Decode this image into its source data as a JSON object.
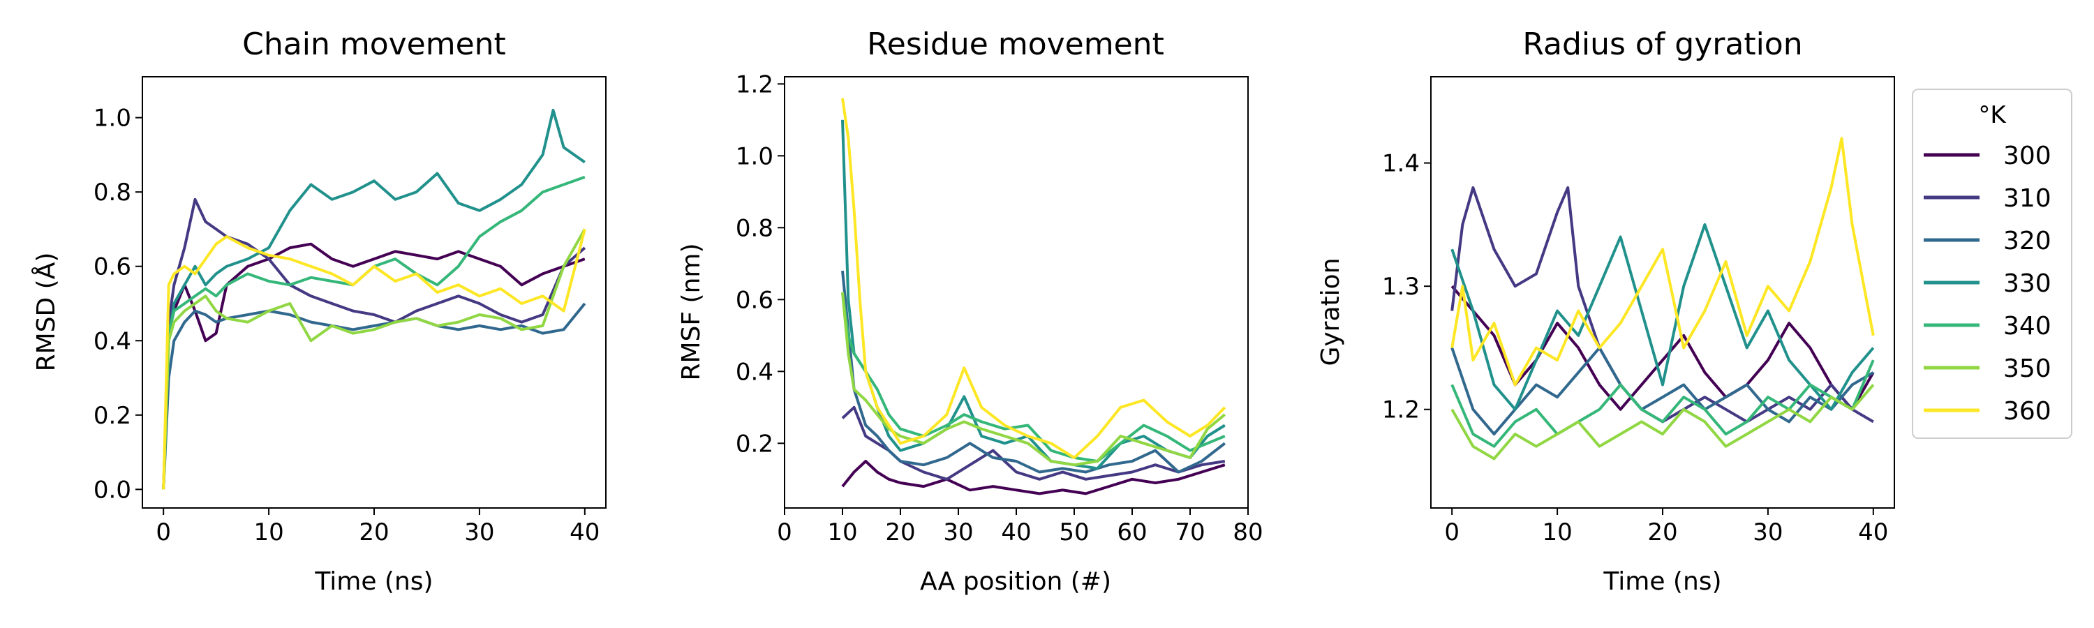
{
  "figure": {
    "legend": {
      "title": "°K",
      "placement": "outside-right"
    }
  },
  "colors": {
    "300": "#440154",
    "310": "#443983",
    "320": "#31688e",
    "330": "#21918c",
    "340": "#35b779",
    "350": "#90d743",
    "360": "#fde725"
  },
  "chart_data": [
    {
      "type": "line",
      "title": "Chain movement",
      "xlabel": "Time (ns)",
      "ylabel": "RMSD (Å)",
      "xlim": [
        -2,
        42
      ],
      "ylim": [
        -0.05,
        1.11
      ],
      "xticks": [
        "0",
        "10",
        "20",
        "30",
        "40"
      ],
      "yticks": [
        "0.0",
        "0.2",
        "0.4",
        "0.6",
        "0.8",
        "1.0"
      ],
      "series": [
        {
          "name": "300",
          "x": [
            0,
            0.5,
            1,
            2,
            3,
            4,
            5,
            6,
            8,
            10,
            12,
            14,
            16,
            18,
            20,
            22,
            24,
            26,
            28,
            30,
            32,
            34,
            36,
            38,
            40
          ],
          "values": [
            0,
            0.42,
            0.48,
            0.55,
            0.48,
            0.4,
            0.42,
            0.55,
            0.6,
            0.62,
            0.65,
            0.66,
            0.62,
            0.6,
            0.62,
            0.64,
            0.63,
            0.62,
            0.64,
            0.62,
            0.6,
            0.55,
            0.58,
            0.6,
            0.62
          ]
        },
        {
          "name": "310",
          "x": [
            0,
            0.5,
            1,
            2,
            3,
            4,
            5,
            6,
            8,
            10,
            12,
            14,
            16,
            18,
            20,
            22,
            24,
            26,
            28,
            30,
            32,
            34,
            36,
            38,
            40
          ],
          "values": [
            0,
            0.45,
            0.55,
            0.65,
            0.78,
            0.72,
            0.7,
            0.68,
            0.66,
            0.62,
            0.55,
            0.52,
            0.5,
            0.48,
            0.47,
            0.45,
            0.48,
            0.5,
            0.52,
            0.5,
            0.47,
            0.45,
            0.47,
            0.6,
            0.65
          ]
        },
        {
          "name": "320",
          "x": [
            0,
            0.5,
            1,
            2,
            3,
            4,
            5,
            6,
            8,
            10,
            12,
            14,
            16,
            18,
            20,
            22,
            24,
            26,
            28,
            30,
            32,
            34,
            36,
            38,
            40
          ],
          "values": [
            0,
            0.3,
            0.4,
            0.45,
            0.48,
            0.47,
            0.45,
            0.46,
            0.47,
            0.48,
            0.47,
            0.45,
            0.44,
            0.43,
            0.44,
            0.45,
            0.46,
            0.44,
            0.43,
            0.44,
            0.43,
            0.44,
            0.42,
            0.43,
            0.5
          ]
        },
        {
          "name": "330",
          "x": [
            0,
            0.5,
            1,
            2,
            3,
            4,
            5,
            6,
            8,
            10,
            12,
            14,
            16,
            18,
            20,
            22,
            24,
            26,
            28,
            30,
            32,
            34,
            36,
            37,
            38,
            40
          ],
          "values": [
            0,
            0.4,
            0.5,
            0.55,
            0.6,
            0.55,
            0.58,
            0.6,
            0.62,
            0.65,
            0.75,
            0.82,
            0.78,
            0.8,
            0.83,
            0.78,
            0.8,
            0.85,
            0.77,
            0.75,
            0.78,
            0.82,
            0.9,
            1.02,
            0.92,
            0.88
          ]
        },
        {
          "name": "340",
          "x": [
            0,
            0.5,
            1,
            2,
            3,
            4,
            5,
            6,
            8,
            10,
            12,
            14,
            16,
            18,
            20,
            22,
            24,
            26,
            28,
            30,
            32,
            34,
            36,
            38,
            40
          ],
          "values": [
            0,
            0.42,
            0.48,
            0.5,
            0.52,
            0.54,
            0.52,
            0.55,
            0.58,
            0.56,
            0.55,
            0.57,
            0.56,
            0.55,
            0.6,
            0.62,
            0.58,
            0.55,
            0.6,
            0.68,
            0.72,
            0.75,
            0.8,
            0.82,
            0.84
          ]
        },
        {
          "name": "350",
          "x": [
            0,
            0.5,
            1,
            2,
            3,
            4,
            5,
            6,
            8,
            10,
            12,
            14,
            16,
            18,
            20,
            22,
            24,
            26,
            28,
            30,
            32,
            34,
            36,
            38,
            40
          ],
          "values": [
            0,
            0.4,
            0.45,
            0.48,
            0.5,
            0.52,
            0.48,
            0.46,
            0.45,
            0.48,
            0.5,
            0.4,
            0.44,
            0.42,
            0.43,
            0.45,
            0.46,
            0.44,
            0.45,
            0.47,
            0.46,
            0.43,
            0.44,
            0.6,
            0.7
          ]
        },
        {
          "name": "360",
          "x": [
            0,
            0.5,
            1,
            2,
            3,
            4,
            5,
            6,
            8,
            10,
            12,
            14,
            16,
            18,
            20,
            22,
            24,
            26,
            28,
            30,
            32,
            34,
            36,
            38,
            40
          ],
          "values": [
            0,
            0.55,
            0.58,
            0.6,
            0.58,
            0.62,
            0.66,
            0.68,
            0.65,
            0.63,
            0.62,
            0.6,
            0.58,
            0.55,
            0.6,
            0.56,
            0.58,
            0.53,
            0.55,
            0.52,
            0.54,
            0.5,
            0.52,
            0.48,
            0.7
          ]
        }
      ]
    },
    {
      "type": "line",
      "title": "Residue movement",
      "xlabel": "AA position (#)",
      "ylabel": "RMSF (nm)",
      "xlim": [
        0,
        80
      ],
      "ylim": [
        0.02,
        1.22
      ],
      "xticks": [
        "0",
        "10",
        "20",
        "30",
        "40",
        "50",
        "60",
        "70",
        "80"
      ],
      "yticks": [
        "0.2",
        "0.4",
        "0.6",
        "0.8",
        "1.0",
        "1.2"
      ],
      "series": [
        {
          "name": "300",
          "x": [
            10,
            12,
            14,
            16,
            18,
            20,
            24,
            28,
            32,
            36,
            40,
            44,
            48,
            52,
            56,
            60,
            64,
            68,
            72,
            76
          ],
          "values": [
            0.08,
            0.12,
            0.15,
            0.12,
            0.1,
            0.09,
            0.08,
            0.1,
            0.07,
            0.08,
            0.07,
            0.06,
            0.07,
            0.06,
            0.08,
            0.1,
            0.09,
            0.1,
            0.12,
            0.14
          ]
        },
        {
          "name": "310",
          "x": [
            10,
            12,
            14,
            16,
            18,
            20,
            24,
            28,
            32,
            36,
            40,
            44,
            48,
            52,
            56,
            60,
            64,
            68,
            72,
            76
          ],
          "values": [
            0.27,
            0.3,
            0.22,
            0.2,
            0.18,
            0.15,
            0.12,
            0.1,
            0.14,
            0.18,
            0.12,
            0.1,
            0.12,
            0.1,
            0.11,
            0.12,
            0.14,
            0.12,
            0.14,
            0.15
          ]
        },
        {
          "name": "320",
          "x": [
            10,
            12,
            14,
            16,
            18,
            20,
            24,
            28,
            32,
            36,
            40,
            44,
            48,
            52,
            56,
            60,
            64,
            68,
            72,
            76
          ],
          "values": [
            0.68,
            0.35,
            0.25,
            0.22,
            0.18,
            0.15,
            0.14,
            0.16,
            0.2,
            0.16,
            0.15,
            0.12,
            0.13,
            0.12,
            0.14,
            0.15,
            0.18,
            0.12,
            0.15,
            0.2
          ]
        },
        {
          "name": "330",
          "x": [
            10,
            11,
            12,
            14,
            16,
            18,
            20,
            24,
            28,
            31,
            34,
            38,
            42,
            46,
            50,
            54,
            58,
            62,
            66,
            70,
            73,
            76
          ],
          "values": [
            1.1,
            0.6,
            0.45,
            0.4,
            0.3,
            0.22,
            0.18,
            0.2,
            0.24,
            0.33,
            0.22,
            0.2,
            0.22,
            0.15,
            0.14,
            0.13,
            0.2,
            0.22,
            0.18,
            0.16,
            0.22,
            0.25
          ]
        },
        {
          "name": "340",
          "x": [
            10,
            11,
            12,
            14,
            16,
            18,
            20,
            24,
            28,
            31,
            34,
            38,
            42,
            46,
            50,
            54,
            58,
            62,
            66,
            70,
            73,
            76
          ],
          "values": [
            0.62,
            0.5,
            0.45,
            0.4,
            0.35,
            0.28,
            0.24,
            0.22,
            0.25,
            0.28,
            0.26,
            0.24,
            0.25,
            0.18,
            0.16,
            0.15,
            0.2,
            0.25,
            0.22,
            0.18,
            0.2,
            0.22
          ]
        },
        {
          "name": "350",
          "x": [
            10,
            11,
            12,
            14,
            16,
            18,
            20,
            24,
            28,
            31,
            34,
            38,
            42,
            46,
            50,
            54,
            58,
            62,
            66,
            70,
            73,
            76
          ],
          "values": [
            0.62,
            0.45,
            0.35,
            0.32,
            0.28,
            0.24,
            0.22,
            0.2,
            0.24,
            0.26,
            0.24,
            0.22,
            0.2,
            0.15,
            0.14,
            0.15,
            0.22,
            0.2,
            0.18,
            0.16,
            0.24,
            0.28
          ]
        },
        {
          "name": "360",
          "x": [
            10,
            11,
            12,
            13,
            14,
            16,
            18,
            20,
            24,
            28,
            31,
            34,
            38,
            42,
            46,
            50,
            54,
            58,
            62,
            66,
            70,
            73,
            76
          ],
          "values": [
            1.16,
            1.05,
            0.85,
            0.6,
            0.4,
            0.3,
            0.25,
            0.2,
            0.22,
            0.28,
            0.41,
            0.3,
            0.25,
            0.22,
            0.2,
            0.16,
            0.22,
            0.3,
            0.32,
            0.26,
            0.22,
            0.25,
            0.3
          ]
        }
      ]
    },
    {
      "type": "line",
      "title": "Radius of gyration",
      "xlabel": "Time (ns)",
      "ylabel": "Gyration",
      "xlim": [
        -2,
        42
      ],
      "ylim": [
        1.12,
        1.47
      ],
      "xticks": [
        "0",
        "10",
        "20",
        "30",
        "40"
      ],
      "yticks": [
        "1.2",
        "1.3",
        "1.4"
      ],
      "series": [
        {
          "name": "300",
          "x": [
            0,
            2,
            4,
            6,
            8,
            10,
            12,
            14,
            16,
            18,
            20,
            22,
            24,
            26,
            28,
            30,
            32,
            34,
            36,
            38,
            40
          ],
          "values": [
            1.3,
            1.28,
            1.26,
            1.22,
            1.24,
            1.27,
            1.25,
            1.22,
            1.2,
            1.22,
            1.24,
            1.26,
            1.23,
            1.21,
            1.22,
            1.24,
            1.27,
            1.25,
            1.22,
            1.2,
            1.23
          ]
        },
        {
          "name": "310",
          "x": [
            0,
            1,
            2,
            4,
            6,
            8,
            10,
            11,
            12,
            14,
            16,
            18,
            20,
            22,
            24,
            26,
            28,
            30,
            32,
            34,
            36,
            38,
            40
          ],
          "values": [
            1.28,
            1.35,
            1.38,
            1.33,
            1.3,
            1.31,
            1.36,
            1.38,
            1.3,
            1.25,
            1.22,
            1.2,
            1.19,
            1.2,
            1.21,
            1.2,
            1.19,
            1.2,
            1.21,
            1.2,
            1.22,
            1.2,
            1.19
          ]
        },
        {
          "name": "320",
          "x": [
            0,
            2,
            4,
            6,
            8,
            10,
            12,
            14,
            16,
            18,
            20,
            22,
            24,
            26,
            28,
            30,
            32,
            34,
            36,
            38,
            40
          ],
          "values": [
            1.25,
            1.2,
            1.18,
            1.2,
            1.22,
            1.21,
            1.23,
            1.25,
            1.22,
            1.2,
            1.21,
            1.22,
            1.2,
            1.21,
            1.22,
            1.2,
            1.19,
            1.21,
            1.2,
            1.22,
            1.23
          ]
        },
        {
          "name": "330",
          "x": [
            0,
            2,
            4,
            6,
            8,
            10,
            12,
            14,
            16,
            18,
            20,
            22,
            24,
            26,
            28,
            30,
            32,
            34,
            36,
            38,
            40
          ],
          "values": [
            1.33,
            1.28,
            1.22,
            1.2,
            1.24,
            1.28,
            1.26,
            1.3,
            1.34,
            1.28,
            1.22,
            1.3,
            1.35,
            1.3,
            1.25,
            1.28,
            1.24,
            1.22,
            1.2,
            1.23,
            1.25
          ]
        },
        {
          "name": "340",
          "x": [
            0,
            2,
            4,
            6,
            8,
            10,
            12,
            14,
            16,
            18,
            20,
            22,
            24,
            26,
            28,
            30,
            32,
            34,
            36,
            38,
            40
          ],
          "values": [
            1.22,
            1.18,
            1.17,
            1.19,
            1.2,
            1.18,
            1.19,
            1.2,
            1.22,
            1.2,
            1.19,
            1.21,
            1.2,
            1.18,
            1.19,
            1.21,
            1.2,
            1.22,
            1.21,
            1.2,
            1.24
          ]
        },
        {
          "name": "350",
          "x": [
            0,
            2,
            4,
            6,
            8,
            10,
            12,
            14,
            16,
            18,
            20,
            22,
            24,
            26,
            28,
            30,
            32,
            34,
            36,
            38,
            40
          ],
          "values": [
            1.2,
            1.17,
            1.16,
            1.18,
            1.17,
            1.18,
            1.19,
            1.17,
            1.18,
            1.19,
            1.18,
            1.2,
            1.19,
            1.17,
            1.18,
            1.19,
            1.2,
            1.19,
            1.21,
            1.2,
            1.22
          ]
        },
        {
          "name": "360",
          "x": [
            0,
            1,
            2,
            4,
            6,
            8,
            10,
            12,
            14,
            16,
            18,
            20,
            22,
            24,
            26,
            28,
            30,
            32,
            34,
            36,
            37,
            38,
            40
          ],
          "values": [
            1.25,
            1.3,
            1.24,
            1.27,
            1.22,
            1.25,
            1.24,
            1.28,
            1.25,
            1.27,
            1.3,
            1.33,
            1.25,
            1.28,
            1.32,
            1.26,
            1.3,
            1.28,
            1.32,
            1.38,
            1.42,
            1.35,
            1.26
          ]
        }
      ]
    }
  ]
}
